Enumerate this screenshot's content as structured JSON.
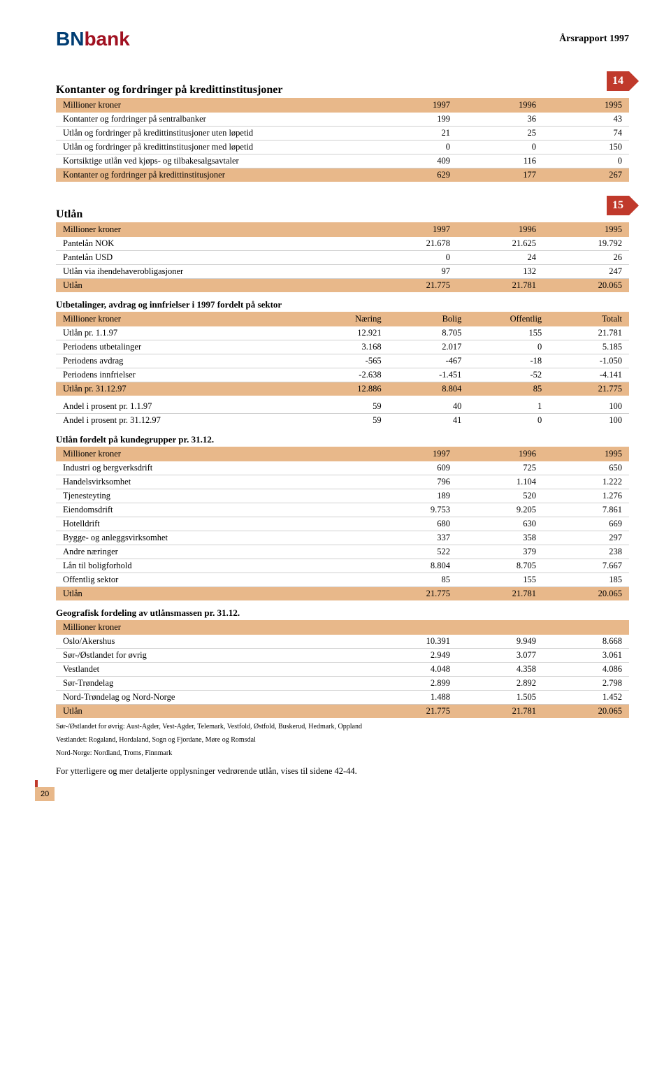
{
  "header": {
    "logo_bn": "BN",
    "logo_bank": "bank",
    "report": "Årsrapport 1997"
  },
  "sec14": {
    "num": "14",
    "title": "Kontanter og fordringer på kredittinstitusjoner",
    "cols": [
      "Millioner kroner",
      "1997",
      "1996",
      "1995"
    ],
    "rows": [
      [
        "Kontanter og fordringer på sentralbanker",
        "199",
        "36",
        "43"
      ],
      [
        "Utlån og fordringer på kredittinstitusjoner uten løpetid",
        "21",
        "25",
        "74"
      ],
      [
        "Utlån og fordringer på kredittinstitusjoner med løpetid",
        "0",
        "0",
        "150"
      ],
      [
        "Kortsiktige utlån ved kjøps- og tilbakesalgsavtaler",
        "409",
        "116",
        "0"
      ]
    ],
    "total": [
      "Kontanter og fordringer på kredittinstitusjoner",
      "629",
      "177",
      "267"
    ]
  },
  "sec15": {
    "num": "15",
    "title": "Utlån",
    "t1": {
      "cols": [
        "Millioner kroner",
        "1997",
        "1996",
        "1995"
      ],
      "rows": [
        [
          "Pantelån NOK",
          "21.678",
          "21.625",
          "19.792"
        ],
        [
          "Pantelån USD",
          "0",
          "24",
          "26"
        ],
        [
          "Utlån via ihendehaverobligasjoner",
          "97",
          "132",
          "247"
        ]
      ],
      "total": [
        "Utlån",
        "21.775",
        "21.781",
        "20.065"
      ]
    },
    "t2": {
      "heading": "Utbetalinger, avdrag og innfrielser i 1997 fordelt på sektor",
      "cols": [
        "Millioner kroner",
        "Næring",
        "Bolig",
        "Offentlig",
        "Totalt"
      ],
      "rows": [
        [
          "Utlån pr. 1.1.97",
          "12.921",
          "8.705",
          "155",
          "21.781"
        ],
        [
          "Periodens utbetalinger",
          "3.168",
          "2.017",
          "0",
          "5.185"
        ],
        [
          "Periodens avdrag",
          "-565",
          "-467",
          "-18",
          "-1.050"
        ],
        [
          "Periodens innfrielser",
          "-2.638",
          "-1.451",
          "-52",
          "-4.141"
        ]
      ],
      "total": [
        "Utlån pr. 31.12.97",
        "12.886",
        "8.804",
        "85",
        "21.775"
      ],
      "extra": [
        [
          "Andel i prosent pr. 1.1.97",
          "59",
          "40",
          "1",
          "100"
        ],
        [
          "Andel i prosent pr. 31.12.97",
          "59",
          "41",
          "0",
          "100"
        ]
      ]
    },
    "t3": {
      "heading": "Utlån fordelt på kundegrupper pr. 31.12.",
      "cols": [
        "Millioner kroner",
        "1997",
        "1996",
        "1995"
      ],
      "rows": [
        [
          "Industri og bergverksdrift",
          "609",
          "725",
          "650"
        ],
        [
          "Handelsvirksomhet",
          "796",
          "1.104",
          "1.222"
        ],
        [
          "Tjenesteyting",
          "189",
          "520",
          "1.276"
        ],
        [
          "Eiendomsdrift",
          "9.753",
          "9.205",
          "7.861"
        ],
        [
          "Hotelldrift",
          "680",
          "630",
          "669"
        ],
        [
          "Bygge- og anleggsvirksomhet",
          "337",
          "358",
          "297"
        ],
        [
          "Andre næringer",
          "522",
          "379",
          "238"
        ],
        [
          "Lån til boligforhold",
          "8.804",
          "8.705",
          "7.667"
        ],
        [
          "Offentlig sektor",
          "85",
          "155",
          "185"
        ]
      ],
      "total": [
        "Utlån",
        "21.775",
        "21.781",
        "20.065"
      ]
    },
    "t4": {
      "heading": "Geografisk fordeling av utlånsmassen pr. 31.12.",
      "cols": [
        "Millioner kroner",
        "",
        "",
        ""
      ],
      "rows": [
        [
          "Oslo/Akershus",
          "10.391",
          "9.949",
          "8.668"
        ],
        [
          "Sør-/Østlandet for øvrig",
          "2.949",
          "3.077",
          "3.061"
        ],
        [
          "Vestlandet",
          "4.048",
          "4.358",
          "4.086"
        ],
        [
          "Sør-Trøndelag",
          "2.899",
          "2.892",
          "2.798"
        ],
        [
          "Nord-Trøndelag og Nord-Norge",
          "1.488",
          "1.505",
          "1.452"
        ]
      ],
      "total": [
        "Utlån",
        "21.775",
        "21.781",
        "20.065"
      ]
    },
    "footnotes": [
      "Sør-/Østlandet for øvrig: Aust-Agder, Vest-Agder, Telemark, Vestfold, Østfold, Buskerud, Hedmark, Oppland",
      "Vestlandet: Rogaland, Hordaland, Sogn og Fjordane, Møre og Romsdal",
      "Nord-Norge: Nordland, Troms, Finnmark"
    ],
    "note": "For ytterligere og mer detaljerte opplysninger vedrørende utlån, vises til sidene 42-44."
  },
  "page_num": "20"
}
